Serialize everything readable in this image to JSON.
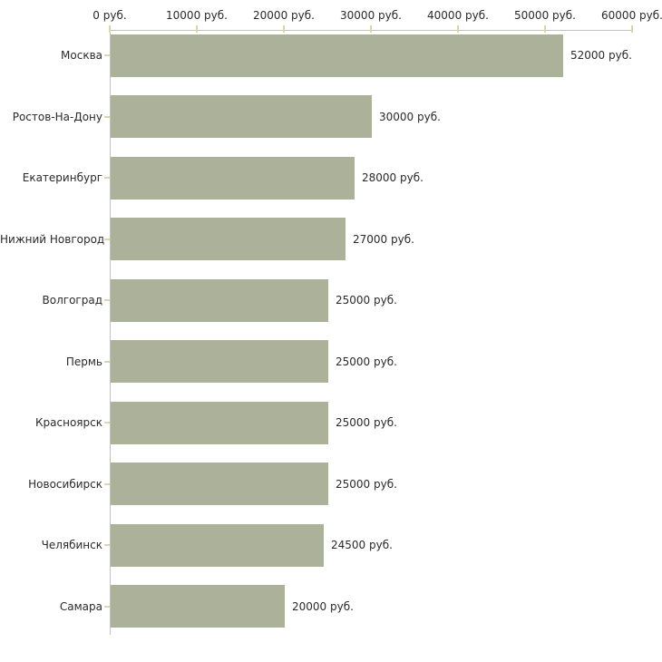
{
  "chart_data": {
    "type": "bar",
    "orientation": "horizontal",
    "categories": [
      "Москва",
      "Ростов-На-Дону",
      "Екатеринбург",
      "Нижний Новгород",
      "Волгоград",
      "Пермь",
      "Красноярск",
      "Новосибирск",
      "Челябинск",
      "Самара"
    ],
    "values": [
      52000,
      30000,
      28000,
      27000,
      25000,
      25000,
      25000,
      25000,
      24500,
      20000
    ],
    "value_labels": [
      "52000 руб.",
      "30000 руб.",
      "28000 руб.",
      "27000 руб.",
      "25000 руб.",
      "25000 руб.",
      "25000 руб.",
      "25000 руб.",
      "24500 руб.",
      "20000 руб."
    ],
    "unit": "руб.",
    "x_axis": {
      "position": "top",
      "min": 0,
      "max": 60000,
      "tick_step": 10000,
      "tick_values": [
        0,
        10000,
        20000,
        30000,
        40000,
        50000,
        60000
      ],
      "tick_labels": [
        "0 руб.",
        "10000 руб.",
        "20000 руб.",
        "30000 руб.",
        "40000 руб.",
        "50000 руб.",
        "60000 руб."
      ]
    },
    "grid": false,
    "legend": false,
    "colors": {
      "bar": "#abb299",
      "axis_line": "#c2c2c2",
      "tick": "#d6d9ad",
      "text": "#2a2a2a",
      "background": "#ffffff"
    }
  }
}
